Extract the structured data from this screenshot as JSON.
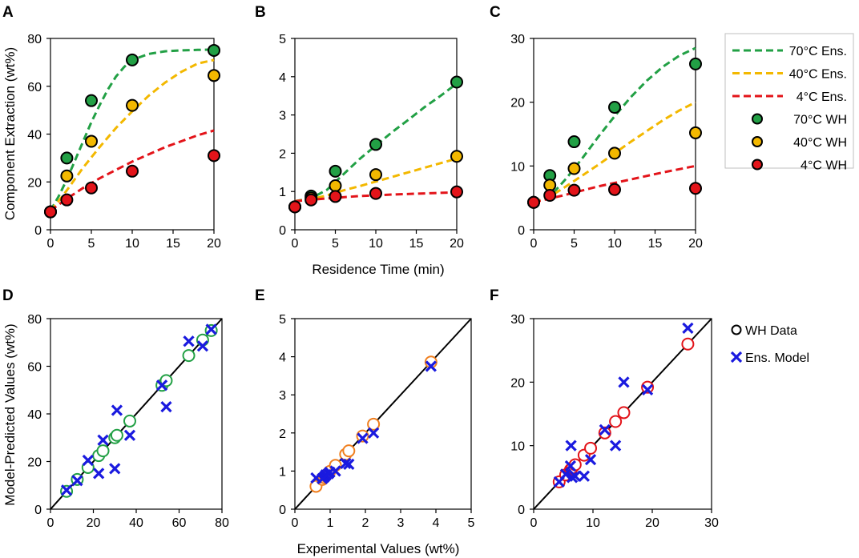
{
  "figure": {
    "x_label_top": "Residence Time (min)",
    "y_label_top": "Component Extraction (wt%)",
    "x_label_bottom": "Experimental Values (wt%)",
    "y_label_bottom": "Model-Predicted Values (wt%)"
  },
  "colors": {
    "green": "#22a045",
    "yellow": "#f3b800",
    "red": "#e3141a",
    "orange": "#f07f1f",
    "blue": "#1a1adf",
    "black": "#000000"
  },
  "legend_top": [
    {
      "label": "70°C Ens.",
      "kind": "dash",
      "color": "#22a045"
    },
    {
      "label": "40°C Ens.",
      "kind": "dash",
      "color": "#f3b800"
    },
    {
      "label": "4°C Ens.",
      "kind": "dash",
      "color": "#e3141a"
    },
    {
      "label": "70°C WH",
      "kind": "dot",
      "color": "#22a045"
    },
    {
      "label": "40°C WH",
      "kind": "dot",
      "color": "#f3b800"
    },
    {
      "label": "4°C WH",
      "kind": "dot",
      "color": "#e3141a"
    }
  ],
  "legend_bottom": [
    {
      "label": "WH Data",
      "kind": "ring"
    },
    {
      "label": "Ens. Model",
      "kind": "cross"
    }
  ],
  "chart_data": [
    {
      "panel": "A",
      "type": "line",
      "x_ticks": [
        0,
        5,
        10,
        15,
        20
      ],
      "y_ticks": [
        0,
        20,
        40,
        60,
        80
      ],
      "xlim": [
        0,
        20
      ],
      "ylim": [
        0,
        80
      ],
      "x": [
        0,
        2,
        5,
        10,
        20
      ],
      "series": [
        {
          "name": "70°C WH",
          "kind": "dot",
          "color": "#22a045",
          "values": [
            7.5,
            30,
            54,
            71,
            75
          ]
        },
        {
          "name": "40°C WH",
          "kind": "dot",
          "color": "#f3b800",
          "values": [
            7.5,
            22.5,
            37,
            52,
            64.5
          ]
        },
        {
          "name": "4°C WH",
          "kind": "dot",
          "color": "#e3141a",
          "values": [
            7.5,
            12.5,
            17.5,
            24.5,
            31
          ]
        },
        {
          "name": "70°C Ens.",
          "kind": "dash",
          "color": "#22a045",
          "points": [
            [
              0,
              8
            ],
            [
              1,
              14
            ],
            [
              2,
              21
            ],
            [
              3,
              29
            ],
            [
              4,
              37
            ],
            [
              5,
              45
            ],
            [
              6,
              52
            ],
            [
              7,
              58.5
            ],
            [
              8,
              64
            ],
            [
              9,
              68
            ],
            [
              10,
              71
            ],
            [
              12,
              73.5
            ],
            [
              14,
              74.6
            ],
            [
              16,
              75
            ],
            [
              18,
              75.2
            ],
            [
              20,
              75.3
            ]
          ]
        },
        {
          "name": "40°C Ens.",
          "kind": "dash",
          "color": "#f3b800",
          "points": [
            [
              0,
              8
            ],
            [
              1,
              12
            ],
            [
              2,
              16.5
            ],
            [
              4,
              26
            ],
            [
              6,
              34.5
            ],
            [
              8,
              42.5
            ],
            [
              10,
              49.5
            ],
            [
              12,
              56
            ],
            [
              14,
              61.5
            ],
            [
              16,
              66
            ],
            [
              18,
              69.5
            ],
            [
              20,
              71
            ]
          ]
        },
        {
          "name": "4°C Ens.",
          "kind": "dash",
          "color": "#e3141a",
          "points": [
            [
              0,
              8
            ],
            [
              2,
              13
            ],
            [
              4,
              17.5
            ],
            [
              6,
              21.5
            ],
            [
              8,
              25
            ],
            [
              10,
              28.5
            ],
            [
              12,
              31.5
            ],
            [
              14,
              34.5
            ],
            [
              16,
              37
            ],
            [
              18,
              39.5
            ],
            [
              20,
              41.5
            ]
          ]
        }
      ]
    },
    {
      "panel": "B",
      "type": "line",
      "x_ticks": [
        0,
        5,
        10,
        15,
        20
      ],
      "y_ticks": [
        0,
        1,
        2,
        3,
        4,
        5
      ],
      "xlim": [
        0,
        20
      ],
      "ylim": [
        0,
        5
      ],
      "x": [
        0,
        2,
        5,
        10,
        20
      ],
      "series": [
        {
          "name": "70°C WH",
          "kind": "dot",
          "color": "#22a045",
          "values": [
            0.6,
            0.88,
            1.53,
            2.23,
            3.86
          ]
        },
        {
          "name": "40°C WH",
          "kind": "dot",
          "color": "#f3b800",
          "values": [
            0.6,
            0.83,
            1.15,
            1.44,
            1.92
          ]
        },
        {
          "name": "4°C WH",
          "kind": "dot",
          "color": "#e3141a",
          "values": [
            0.6,
            0.78,
            0.87,
            0.95,
            0.99
          ]
        },
        {
          "name": "70°C Ens.",
          "kind": "dash",
          "color": "#22a045",
          "points": [
            [
              0,
              0.75
            ],
            [
              2,
              0.82
            ],
            [
              4,
              1.05
            ],
            [
              6,
              1.45
            ],
            [
              8,
              1.85
            ],
            [
              10,
              2.2
            ],
            [
              12,
              2.55
            ],
            [
              14,
              2.87
            ],
            [
              16,
              3.2
            ],
            [
              18,
              3.5
            ],
            [
              20,
              3.82
            ]
          ]
        },
        {
          "name": "40°C Ens.",
          "kind": "dash",
          "color": "#f3b800",
          "points": [
            [
              0,
              0.75
            ],
            [
              2,
              0.8
            ],
            [
              4,
              0.9
            ],
            [
              6,
              1.03
            ],
            [
              8,
              1.14
            ],
            [
              10,
              1.26
            ],
            [
              12,
              1.38
            ],
            [
              14,
              1.5
            ],
            [
              16,
              1.62
            ],
            [
              18,
              1.74
            ],
            [
              20,
              1.86
            ]
          ]
        },
        {
          "name": "4°C Ens.",
          "kind": "dash",
          "color": "#e3141a",
          "points": [
            [
              0,
              0.75
            ],
            [
              4,
              0.82
            ],
            [
              8,
              0.88
            ],
            [
              12,
              0.92
            ],
            [
              16,
              0.95
            ],
            [
              20,
              0.98
            ]
          ]
        }
      ]
    },
    {
      "panel": "C",
      "type": "line",
      "x_ticks": [
        0,
        5,
        10,
        15,
        20
      ],
      "y_ticks": [
        0,
        10,
        20,
        30
      ],
      "xlim": [
        0,
        20
      ],
      "ylim": [
        0,
        30
      ],
      "x": [
        0,
        2,
        5,
        10,
        20
      ],
      "series": [
        {
          "name": "70°C WH",
          "kind": "dot",
          "color": "#22a045",
          "values": [
            4.3,
            8.5,
            13.8,
            19.2,
            26
          ]
        },
        {
          "name": "40°C WH",
          "kind": "dot",
          "color": "#f3b800",
          "values": [
            4.3,
            7,
            9.6,
            12,
            15.2
          ]
        },
        {
          "name": "4°C WH",
          "kind": "dot",
          "color": "#e3141a",
          "values": [
            4.3,
            5.4,
            6.2,
            6.3,
            6.5
          ]
        },
        {
          "name": "70°C Ens.",
          "kind": "dash",
          "color": "#22a045",
          "points": [
            [
              0,
              4.3
            ],
            [
              2,
              5.2
            ],
            [
              4,
              8
            ],
            [
              6,
              11.2
            ],
            [
              8,
              14.6
            ],
            [
              10,
              17.8
            ],
            [
              12,
              20.8
            ],
            [
              14,
              23.4
            ],
            [
              16,
              25.6
            ],
            [
              18,
              27.3
            ],
            [
              20,
              28.5
            ]
          ]
        },
        {
          "name": "40°C Ens.",
          "kind": "dash",
          "color": "#f3b800",
          "points": [
            [
              0,
              4.3
            ],
            [
              2,
              5.2
            ],
            [
              4,
              6.8
            ],
            [
              6,
              8.5
            ],
            [
              8,
              10.2
            ],
            [
              10,
              12
            ],
            [
              12,
              13.8
            ],
            [
              14,
              15.5
            ],
            [
              16,
              17.2
            ],
            [
              18,
              18.7
            ],
            [
              20,
              20
            ]
          ]
        },
        {
          "name": "4°C Ens.",
          "kind": "dash",
          "color": "#e3141a",
          "points": [
            [
              0,
              4.3
            ],
            [
              4,
              5.5
            ],
            [
              8,
              6.8
            ],
            [
              12,
              7.9
            ],
            [
              16,
              9
            ],
            [
              20,
              10
            ]
          ]
        }
      ]
    },
    {
      "panel": "D",
      "type": "scatter",
      "x_ticks": [
        0,
        20,
        40,
        60,
        80
      ],
      "y_ticks": [
        0,
        20,
        40,
        60,
        80
      ],
      "xlim": [
        0,
        80
      ],
      "ylim": [
        0,
        80
      ],
      "ring_color": "#22a045",
      "wh_data": [
        [
          7.5,
          7.5
        ],
        [
          12.5,
          12.5
        ],
        [
          17.5,
          17.5
        ],
        [
          22.5,
          22.5
        ],
        [
          24.5,
          24.5
        ],
        [
          30,
          30
        ],
        [
          31,
          31
        ],
        [
          37,
          37
        ],
        [
          52,
          52
        ],
        [
          54,
          54
        ],
        [
          64.5,
          64.5
        ],
        [
          71,
          71
        ],
        [
          75,
          75
        ]
      ],
      "ens_model": [
        [
          7.5,
          8
        ],
        [
          12.5,
          12
        ],
        [
          17.5,
          20.5
        ],
        [
          22.5,
          15
        ],
        [
          24.5,
          29
        ],
        [
          30,
          17
        ],
        [
          31,
          41.5
        ],
        [
          37,
          31
        ],
        [
          52,
          52
        ],
        [
          54,
          43
        ],
        [
          64.5,
          70.5
        ],
        [
          71,
          68.5
        ],
        [
          75,
          75.5
        ]
      ]
    },
    {
      "panel": "E",
      "type": "scatter",
      "x_ticks": [
        0,
        1,
        2,
        3,
        4,
        5
      ],
      "y_ticks": [
        0,
        1,
        2,
        3,
        4,
        5
      ],
      "xlim": [
        0,
        5
      ],
      "ylim": [
        0,
        5
      ],
      "ring_color": "#f07f1f",
      "wh_data": [
        [
          0.6,
          0.6
        ],
        [
          0.78,
          0.78
        ],
        [
          0.83,
          0.83
        ],
        [
          0.87,
          0.87
        ],
        [
          0.88,
          0.88
        ],
        [
          0.95,
          0.95
        ],
        [
          0.99,
          0.99
        ],
        [
          1.15,
          1.15
        ],
        [
          1.44,
          1.44
        ],
        [
          1.53,
          1.53
        ],
        [
          1.92,
          1.92
        ],
        [
          2.23,
          2.23
        ],
        [
          3.86,
          3.86
        ]
      ],
      "ens_model": [
        [
          0.6,
          0.82
        ],
        [
          0.78,
          0.8
        ],
        [
          0.83,
          0.84
        ],
        [
          0.87,
          0.88
        ],
        [
          0.88,
          0.9
        ],
        [
          0.95,
          0.93
        ],
        [
          0.99,
          0.97
        ],
        [
          1.15,
          1.0
        ],
        [
          1.44,
          1.2
        ],
        [
          1.53,
          1.18
        ],
        [
          1.92,
          1.86
        ],
        [
          2.23,
          2.0
        ],
        [
          3.86,
          3.75
        ]
      ]
    },
    {
      "panel": "F",
      "type": "scatter",
      "x_ticks": [
        0,
        10,
        20,
        30
      ],
      "y_ticks": [
        0,
        10,
        20,
        30
      ],
      "xlim": [
        0,
        30
      ],
      "ylim": [
        0,
        30
      ],
      "ring_color": "#e3141a",
      "wh_data": [
        [
          4.3,
          4.3
        ],
        [
          5.4,
          5.4
        ],
        [
          6.2,
          6.2
        ],
        [
          6.3,
          6.3
        ],
        [
          6.5,
          6.5
        ],
        [
          7,
          7
        ],
        [
          8.5,
          8.5
        ],
        [
          9.6,
          9.6
        ],
        [
          12,
          12
        ],
        [
          13.8,
          13.8
        ],
        [
          15.2,
          15.2
        ],
        [
          19.2,
          19.2
        ],
        [
          26,
          26
        ]
      ],
      "ens_model": [
        [
          4.3,
          4.3
        ],
        [
          5.4,
          5.5
        ],
        [
          6.2,
          6.8
        ],
        [
          6.3,
          10
        ],
        [
          6.5,
          5
        ],
        [
          7,
          5.2
        ],
        [
          8.5,
          5.2
        ],
        [
          9.6,
          7.8
        ],
        [
          12,
          12.5
        ],
        [
          13.8,
          10
        ],
        [
          15.2,
          20
        ],
        [
          19.2,
          18.8
        ],
        [
          26,
          28.5
        ]
      ]
    }
  ]
}
